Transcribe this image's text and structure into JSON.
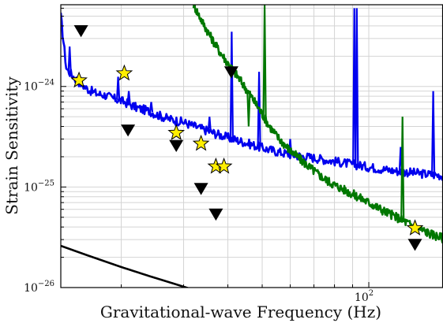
{
  "chart_data": {
    "type": "line",
    "xlabel": "Gravitational-wave Frequency (Hz)",
    "ylabel": "Strain Sensitivity",
    "xscale": "log",
    "yscale": "log",
    "xlim": [
      13.5,
      162
    ],
    "ylim": [
      1e-26,
      6.5e-24
    ],
    "grid": true,
    "x_tick_labels": [
      {
        "value": 100,
        "base": "10",
        "exp": "2"
      }
    ],
    "y_tick_labels": [
      {
        "value": 1e-24,
        "base": "10",
        "exp": "−24"
      },
      {
        "value": 1e-25,
        "base": "10",
        "exp": "−25"
      },
      {
        "value": 1e-26,
        "base": "10",
        "exp": "−26"
      }
    ],
    "series": [
      {
        "color": "#0000ee",
        "style": "line",
        "x": [
          13.5,
          14,
          15,
          16,
          17,
          18,
          19,
          20,
          21,
          22,
          23,
          24,
          25,
          27,
          30,
          33,
          36,
          40,
          45,
          50,
          55,
          60,
          70,
          80,
          90,
          100,
          110,
          120,
          130,
          140,
          150,
          162
        ],
        "y": [
          5e-24,
          1.5e-24,
          1.15e-24,
          9.5e-25,
          8.5e-25,
          8.2e-25,
          7.6e-25,
          7.2e-25,
          6.7e-25,
          6.2e-25,
          5.9e-25,
          5.7e-25,
          5.3e-25,
          4.8e-25,
          4.4e-25,
          3.9e-25,
          3.5e-25,
          3.1e-25,
          2.75e-25,
          2.45e-25,
          2.25e-25,
          2.1e-25,
          1.95e-25,
          1.8e-25,
          1.68e-25,
          1.58e-25,
          1.5e-25,
          1.44e-25,
          1.4e-25,
          1.36e-25,
          1.33e-25,
          1.3e-25
        ],
        "peaks": [
          {
            "x": 14.3,
            "y": 2.5e-24
          },
          {
            "x": 19.6,
            "y": 1.25e-24
          },
          {
            "x": 21.0,
            "y": 9e-25
          },
          {
            "x": 24.3,
            "y": 7e-25
          },
          {
            "x": 35.5,
            "y": 5e-25
          },
          {
            "x": 41.0,
            "y": 3.5e-24
          },
          {
            "x": 49.0,
            "y": 1.4e-24
          },
          {
            "x": 60.0,
            "y": 3e-25
          },
          {
            "x": 91.0,
            "y": 6e-24
          },
          {
            "x": 92.5,
            "y": 6e-24
          },
          {
            "x": 123.0,
            "y": 2.5e-25
          },
          {
            "x": 152.0,
            "y": 9e-25
          }
        ]
      },
      {
        "color": "#007700",
        "style": "line",
        "x": [
          32,
          34,
          36,
          38,
          40,
          43,
          46,
          49,
          52,
          55,
          60,
          65,
          70,
          75,
          80,
          90,
          100,
          110,
          120,
          130,
          140,
          150,
          162
        ],
        "y": [
          6.5e-24,
          4.3e-24,
          3e-24,
          2.2e-24,
          1.7e-24,
          1.2e-24,
          8.5e-25,
          6e-25,
          4.2e-25,
          3.2e-25,
          2.3e-25,
          1.8e-25,
          1.45e-25,
          1.2e-25,
          1.05e-25,
          8.5e-26,
          7e-26,
          5.8e-26,
          5e-26,
          4.3e-26,
          3.8e-26,
          3.4e-26,
          3.1e-26
        ],
        "peaks": [
          {
            "x": 45.8,
            "y": 4e-25
          },
          {
            "x": 50.8,
            "y": 6.5e-24
          },
          {
            "x": 124.5,
            "y": 5e-25
          }
        ]
      },
      {
        "color": "#000000",
        "style": "line",
        "x": [
          13.5,
          16,
          20,
          24,
          28,
          32
        ],
        "y": [
          2.6e-26,
          2.1e-26,
          1.6e-26,
          1.3e-26,
          1.1e-26,
          9.5e-27
        ]
      },
      {
        "color": "#ffee00",
        "style": "star-markers",
        "x": [
          15.2,
          20.4,
          28.6,
          33.6,
          37.0,
          39.0,
          135.0
        ],
        "y": [
          1.15e-24,
          1.35e-24,
          3.45e-25,
          2.7e-25,
          1.6e-25,
          1.6e-25,
          3.9e-26
        ]
      },
      {
        "color": "#000000",
        "style": "triangle-down-markers",
        "x": [
          15.4,
          20.9,
          28.6,
          33.6,
          37.0,
          40.9,
          135.0
        ],
        "y": [
          3.6e-24,
          3.7e-25,
          2.6e-25,
          9.7e-26,
          5.4e-26,
          1.4e-24,
          2.7e-26
        ]
      }
    ]
  }
}
